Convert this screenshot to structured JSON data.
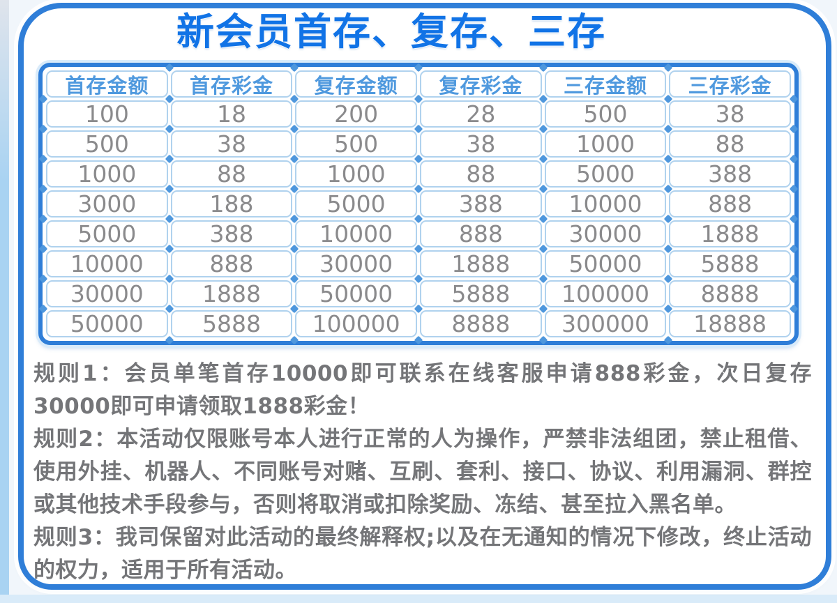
{
  "title": "新会员首存、复存、三存",
  "table": {
    "headers": [
      "首存金额",
      "首存彩金",
      "复存金额",
      "复存彩金",
      "三存金额",
      "三存彩金"
    ],
    "rows": [
      [
        "100",
        "18",
        "200",
        "28",
        "500",
        "38"
      ],
      [
        "500",
        "38",
        "500",
        "38",
        "1000",
        "88"
      ],
      [
        "1000",
        "88",
        "1000",
        "88",
        "5000",
        "388"
      ],
      [
        "3000",
        "188",
        "5000",
        "388",
        "10000",
        "888"
      ],
      [
        "5000",
        "388",
        "10000",
        "888",
        "30000",
        "1888"
      ],
      [
        "10000",
        "888",
        "30000",
        "1888",
        "50000",
        "5888"
      ],
      [
        "30000",
        "1888",
        "50000",
        "5888",
        "100000",
        "8888"
      ],
      [
        "50000",
        "5888",
        "100000",
        "8888",
        "300000",
        "18888"
      ]
    ]
  },
  "rules": [
    "规则1：会员单笔首存10000即可联系在线客服申请888彩金，次日复存30000即可申请领取1888彩金！",
    "规则2：本活动仅限账号本人进行正常的人为操作，严禁非法组团，禁止租借、使用外挂、机器人、不同账号对赌、互刷、套利、接口、协议、利用漏洞、群控或其他技术手段参与，否则将取消或扣除奖励、冻结、甚至拉入黑名单。",
    "规则3：我司保留对此活动的最终解释权;以及在无通知的情况下修改，终止活动的权力，适用于所有活动。"
  ],
  "colors": {
    "title_blue": "#1173e6",
    "frame_border_blue": "#2f7ed8",
    "header_text_blue": "#4f99de",
    "cell_border_blue": "#b0d2ee",
    "diamond_blue": "#4e97dd",
    "data_text_gray": "#8a8a8c",
    "rules_text_gray": "#747578"
  },
  "chart_data": {
    "type": "table",
    "title": "新会员首存、复存、三存",
    "columns": [
      "首存金额",
      "首存彩金",
      "复存金额",
      "复存彩金",
      "三存金额",
      "三存彩金"
    ],
    "rows": [
      [
        100,
        18,
        200,
        28,
        500,
        38
      ],
      [
        500,
        38,
        500,
        38,
        1000,
        88
      ],
      [
        1000,
        88,
        1000,
        88,
        5000,
        388
      ],
      [
        3000,
        188,
        5000,
        388,
        10000,
        888
      ],
      [
        5000,
        388,
        10000,
        888,
        30000,
        1888
      ],
      [
        10000,
        888,
        30000,
        1888,
        50000,
        5888
      ],
      [
        30000,
        1888,
        50000,
        5888,
        100000,
        8888
      ],
      [
        50000,
        5888,
        100000,
        8888,
        300000,
        18888
      ]
    ]
  }
}
